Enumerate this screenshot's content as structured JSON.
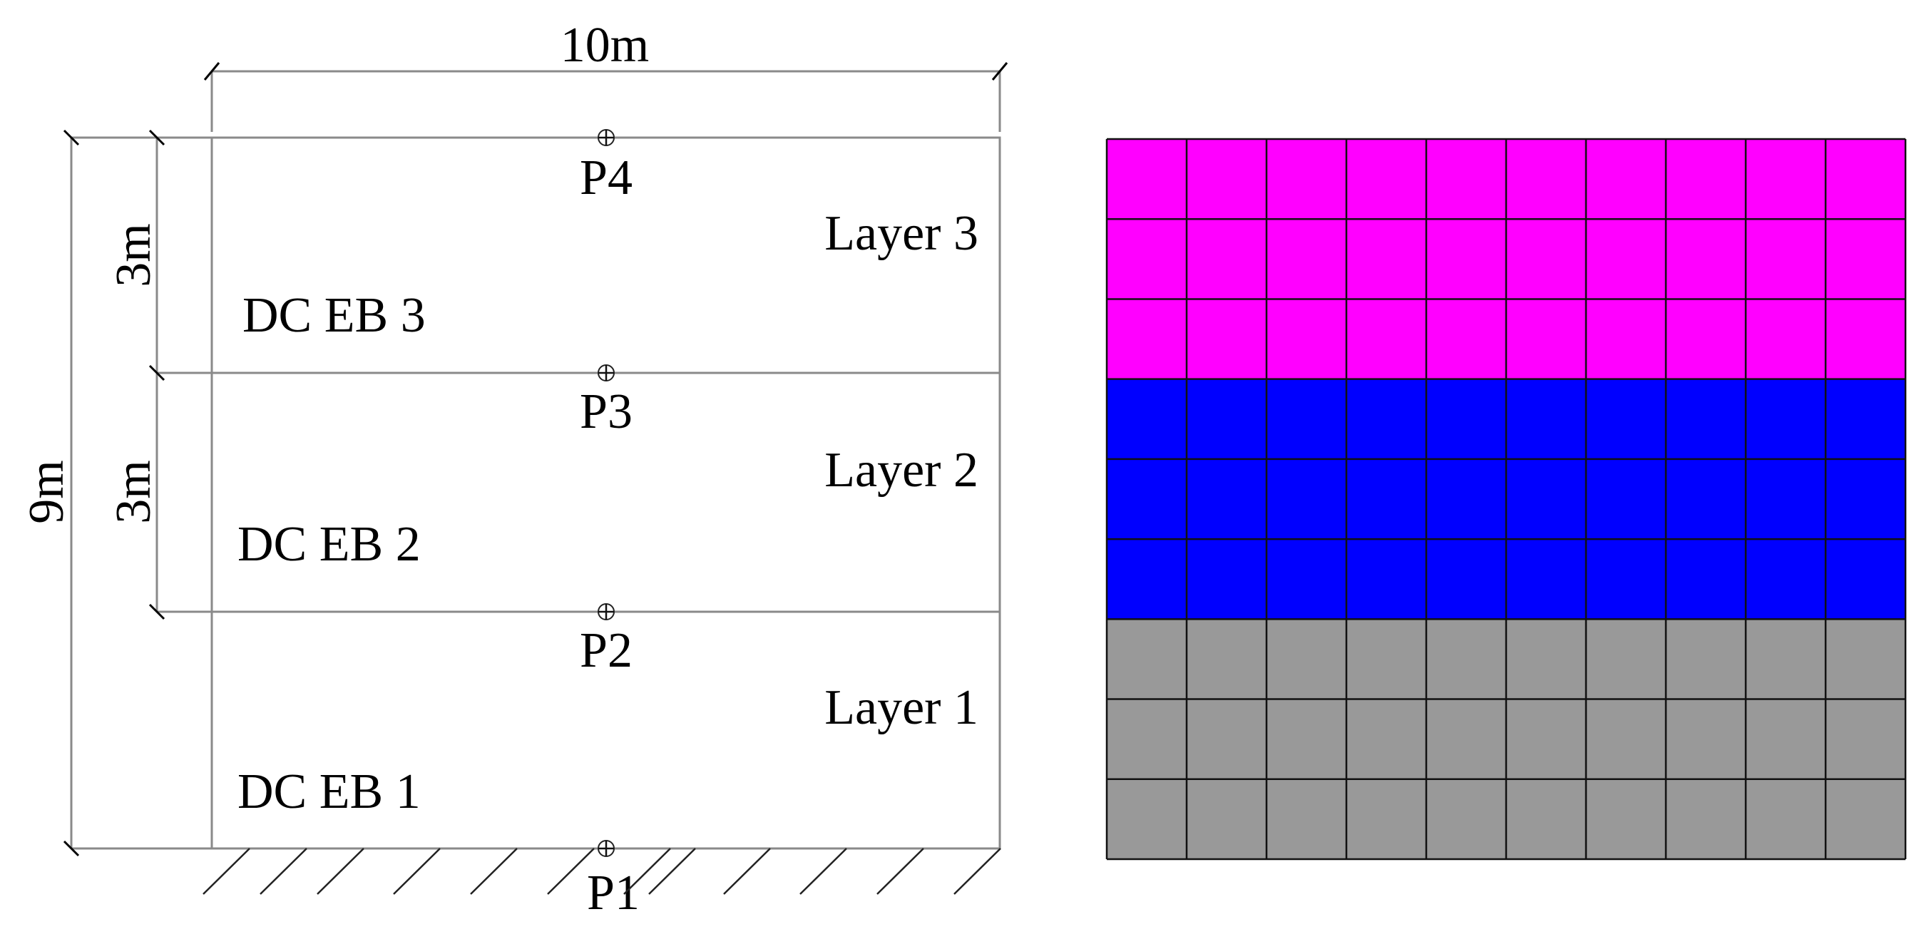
{
  "dimensions": {
    "width_label": "10m",
    "height_label": "9m",
    "layer_thickness_labels": [
      "3m",
      "3m"
    ]
  },
  "layers": [
    {
      "label": "Layer 1",
      "dc_label": "DC EB 1"
    },
    {
      "label": "Layer 2",
      "dc_label": "DC EB 2"
    },
    {
      "label": "Layer 3",
      "dc_label": "DC EB 3"
    }
  ],
  "points": [
    "P1",
    "P2",
    "P3",
    "P4"
  ],
  "mesh": {
    "columns": 10,
    "rows": 9,
    "bands": [
      {
        "rows": 3,
        "color": "#ff00ff"
      },
      {
        "rows": 3,
        "color": "#0000ff"
      },
      {
        "rows": 3,
        "color": "#999999"
      }
    ]
  }
}
